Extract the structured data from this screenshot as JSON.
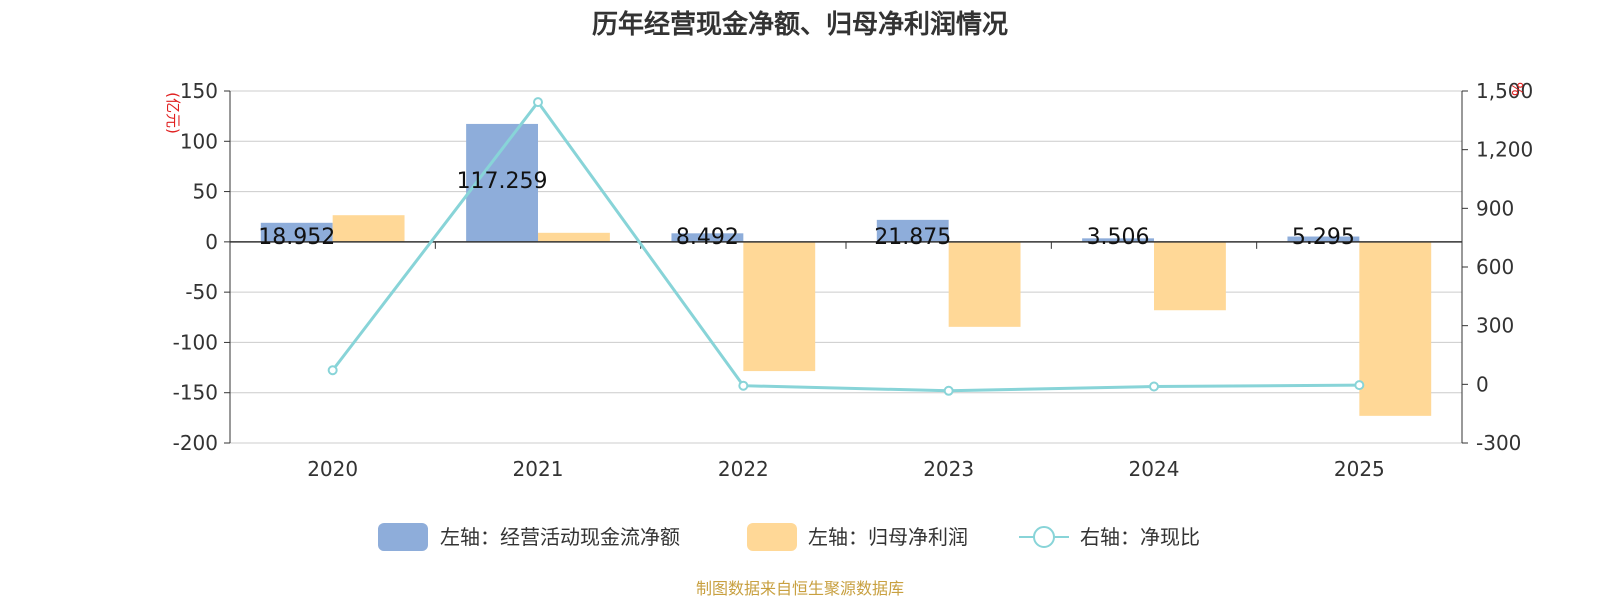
{
  "chart_data": {
    "type": "bar",
    "title": "历年经营现金净额、归母净利润情况",
    "categories": [
      "2020",
      "2021",
      "2022",
      "2023",
      "2024",
      "2025"
    ],
    "left_axis": {
      "unit": "(亿元)",
      "ylim": [
        -200,
        150
      ],
      "ticks": [
        150,
        100,
        50,
        0,
        -50,
        -100,
        -150,
        -200
      ],
      "tick_labels": [
        "150",
        "100",
        "50",
        "0",
        "-50",
        "-100",
        "-150",
        "-200"
      ]
    },
    "right_axis": {
      "unit": "%",
      "ylim": [
        -300,
        1500
      ],
      "ticks": [
        1500,
        1200,
        900,
        600,
        300,
        0,
        -300
      ],
      "tick_labels": [
        "1,500",
        "1,200",
        "900",
        "600",
        "300",
        "0",
        "-300"
      ]
    },
    "series": [
      {
        "name": "左轴：经营活动现金流净额",
        "type": "bar",
        "axis": "left",
        "color": "#8eadda",
        "values": [
          18.952,
          117.259,
          8.492,
          21.875,
          3.506,
          5.295
        ],
        "labels": [
          "18.952",
          "117.259",
          "8.492",
          "21.875",
          "3.506",
          "5.295"
        ]
      },
      {
        "name": "左轴：归母净利润",
        "type": "bar",
        "axis": "left",
        "color": "#ffd897",
        "values": [
          26.5,
          9.0,
          -128.5,
          -84.5,
          -68.0,
          -173.0
        ]
      },
      {
        "name": "右轴：净现比",
        "type": "line",
        "axis": "right",
        "color": "#88d4d8",
        "values": [
          72,
          1443,
          -7,
          -33,
          -11,
          -4
        ]
      }
    ],
    "legend_position": "bottom",
    "grid": true
  },
  "source_note": "制图数据来自恒生聚源数据库"
}
